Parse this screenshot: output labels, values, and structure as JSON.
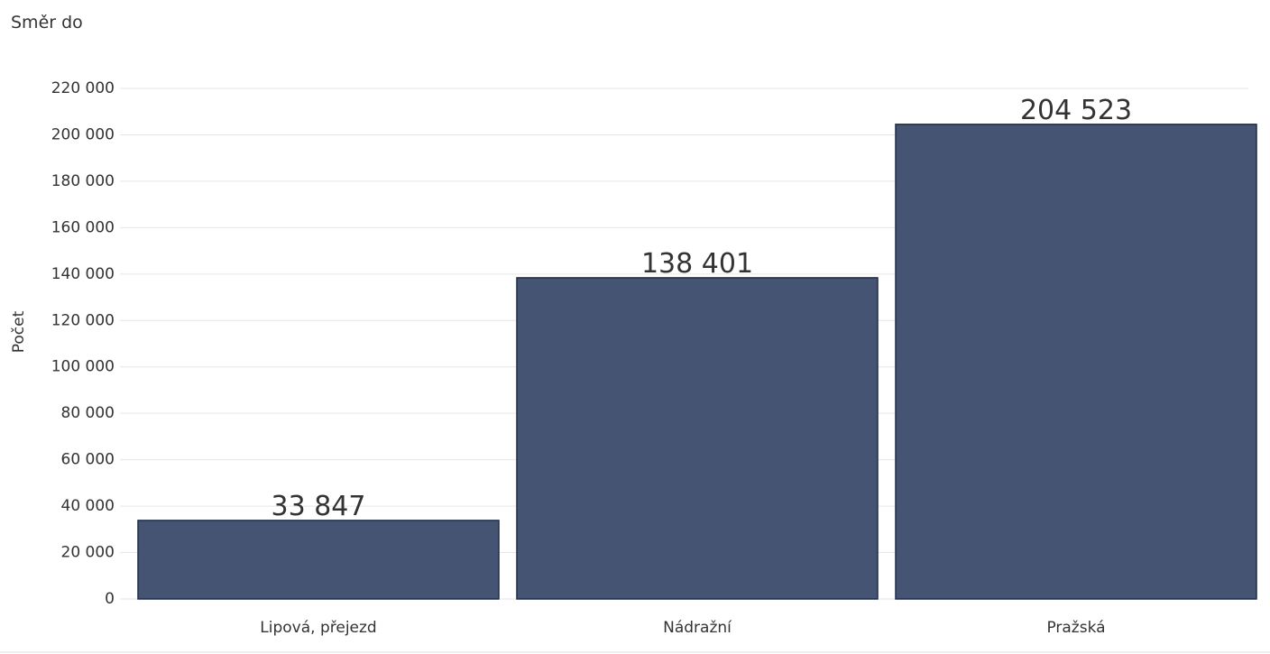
{
  "chart_data": {
    "type": "bar",
    "title": "Směr do",
    "y_label": "Počet",
    "categories": [
      "Lipová, přejezd",
      "Nádražní",
      "Pražská"
    ],
    "values": [
      33847,
      138401,
      204523
    ],
    "value_labels": [
      "33 847",
      "138 401",
      "204 523"
    ],
    "color": "#455473",
    "ylim": [
      0,
      220000
    ],
    "yticks": [
      0,
      {
        "value": 20000,
        "label": "20 000"
      },
      {
        "value": 40000,
        "label": "40 000"
      },
      {
        "value": 60000,
        "label": "60 000"
      },
      {
        "value": 80000,
        "label": "80 000"
      },
      {
        "value": 100000,
        "label": "100 000"
      },
      {
        "value": 120000,
        "label": "120 000"
      },
      {
        "value": 140000,
        "label": "140 000"
      },
      {
        "value": 160000,
        "label": "160 000"
      },
      {
        "value": 180000,
        "label": "180 000"
      },
      {
        "value": 200000,
        "label": "200 000"
      },
      {
        "value": 220000,
        "label": "220 000"
      }
    ],
    "grid": true
  }
}
